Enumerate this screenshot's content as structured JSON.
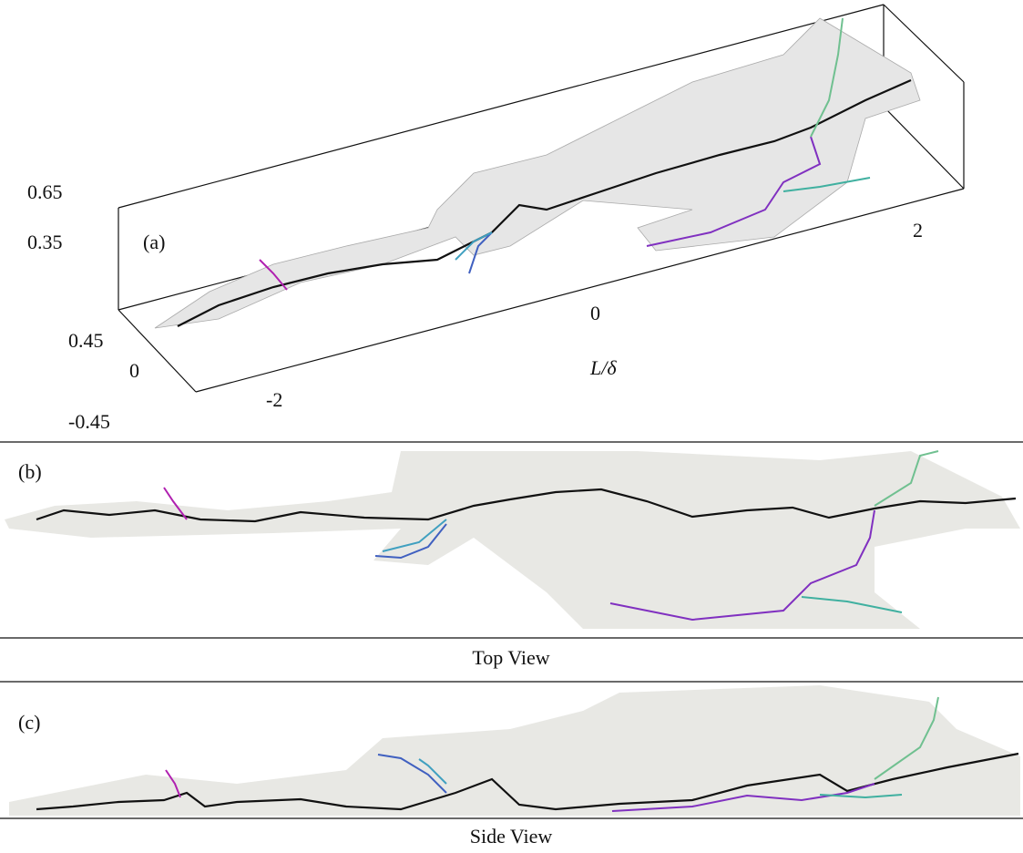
{
  "panel_a": {
    "label": "(a)",
    "z_ticks": [
      "0.65",
      "0.35"
    ],
    "y_ticks": [
      "0.45",
      "0",
      "-0.45"
    ],
    "x_ticks": [
      "-2",
      "0",
      "2"
    ],
    "x_label": "L/δ"
  },
  "panel_b": {
    "label": "(b)",
    "caption": "Top View"
  },
  "panel_c": {
    "label": "(c)",
    "caption": "Side View"
  }
}
